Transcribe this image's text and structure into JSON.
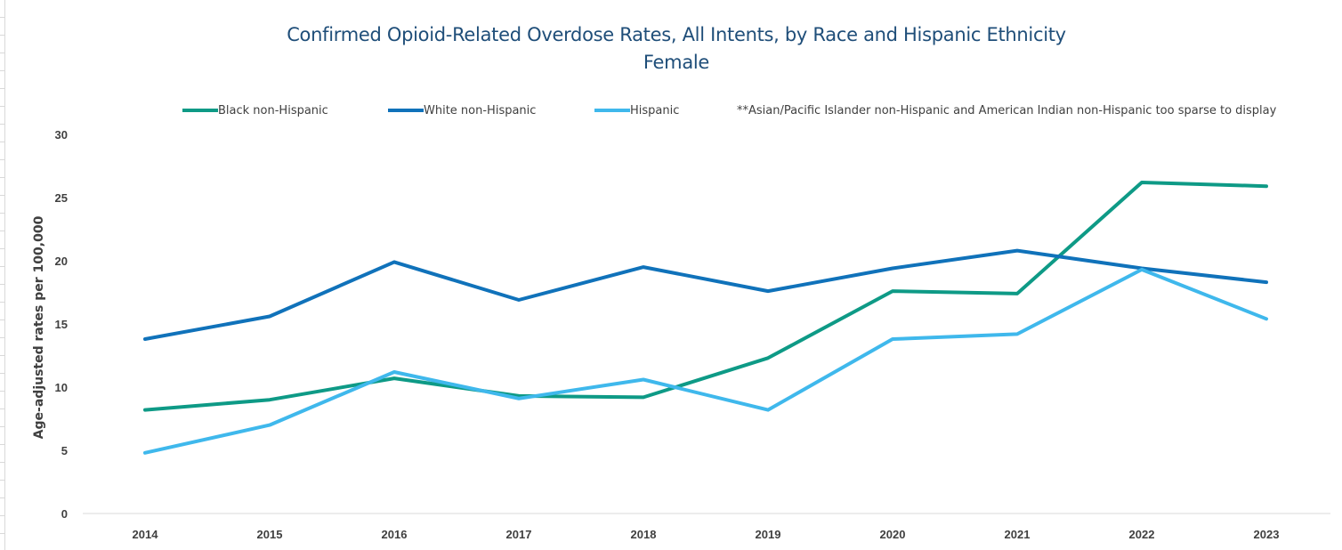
{
  "chart_data": {
    "type": "line",
    "title": "Confirmed Opioid-Related Overdose Rates, All Intents, by Race and Hispanic Ethnicity",
    "subtitle": "Female",
    "ylabel": "Age-adjusted rates per 100,000",
    "xlabel": "",
    "ylim": [
      0,
      30
    ],
    "yticks": [
      "0",
      "5",
      "10",
      "15",
      "20",
      "25",
      "30"
    ],
    "categories": [
      "2014",
      "2015",
      "2016",
      "2017",
      "2018",
      "2019",
      "2020",
      "2021",
      "2022",
      "2023"
    ],
    "grid": false,
    "legend_position": "top",
    "legend_note": "**Asian/Pacific Islander non-Hispanic and American Indian non-Hispanic too sparse to display",
    "series": [
      {
        "name": "Black non-Hispanic",
        "color": "#0e9a86",
        "values": [
          8.2,
          9.0,
          10.7,
          9.3,
          9.2,
          12.3,
          17.6,
          17.4,
          26.2,
          25.9
        ]
      },
      {
        "name": "White non-Hispanic",
        "color": "#1072ba",
        "values": [
          13.8,
          15.6,
          19.9,
          16.9,
          19.5,
          17.6,
          19.4,
          20.8,
          19.4,
          18.3
        ]
      },
      {
        "name": "Hispanic",
        "color": "#3fb8ec",
        "values": [
          4.8,
          7.0,
          11.2,
          9.1,
          10.6,
          8.2,
          13.8,
          14.2,
          19.3,
          15.4
        ]
      }
    ]
  }
}
